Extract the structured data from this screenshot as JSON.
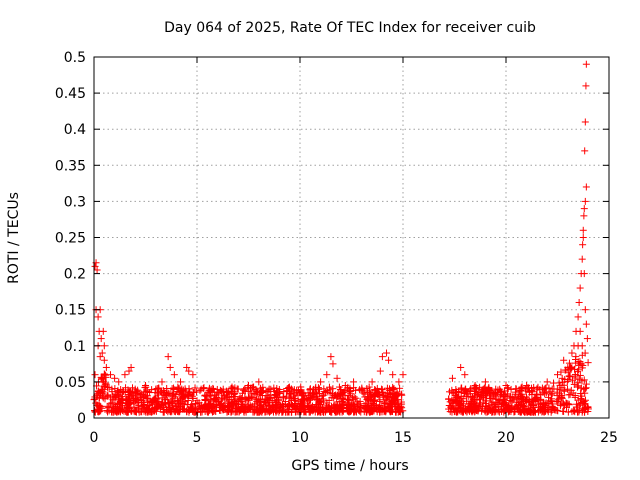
{
  "chart_data": {
    "type": "scatter",
    "title": "Day 064 of 2025, Rate Of TEC Index for receiver cuib",
    "xlabel": "GPS time / hours",
    "ylabel": "ROTI / TECUs",
    "xlim": [
      0,
      25
    ],
    "ylim": [
      0,
      0.5
    ],
    "xticks": [
      "0",
      "5",
      "10",
      "15",
      "20",
      "25"
    ],
    "yticks": [
      "0",
      "0.05",
      "0.1",
      "0.15",
      "0.2",
      "0.25",
      "0.3",
      "0.35",
      "0.4",
      "0.45",
      "0.5"
    ],
    "grid": true,
    "marker": "+",
    "series": [
      {
        "color": "#ff0000",
        "note_gap": [
          15.0,
          17.2
        ],
        "points": [
          [
            0.05,
            0.21
          ],
          [
            0.1,
            0.215
          ],
          [
            0.15,
            0.205
          ],
          [
            0.1,
            0.15
          ],
          [
            0.3,
            0.15
          ],
          [
            0.2,
            0.14
          ],
          [
            0.25,
            0.12
          ],
          [
            0.35,
            0.11
          ],
          [
            0.2,
            0.1
          ],
          [
            0.4,
            0.09
          ],
          [
            0.5,
            0.08
          ],
          [
            0.3,
            0.085
          ],
          [
            0.6,
            0.07
          ],
          [
            0.05,
            0.06
          ],
          [
            0.5,
            0.1
          ],
          [
            0.45,
            0.12
          ],
          [
            0.8,
            0.06
          ],
          [
            1.0,
            0.055
          ],
          [
            1.2,
            0.05
          ],
          [
            1.5,
            0.06
          ],
          [
            1.7,
            0.065
          ],
          [
            1.8,
            0.07
          ],
          [
            2.0,
            0.04
          ],
          [
            2.5,
            0.045
          ],
          [
            3.0,
            0.04
          ],
          [
            3.3,
            0.05
          ],
          [
            3.6,
            0.085
          ],
          [
            3.7,
            0.07
          ],
          [
            3.9,
            0.06
          ],
          [
            4.2,
            0.05
          ],
          [
            4.5,
            0.07
          ],
          [
            4.6,
            0.065
          ],
          [
            4.8,
            0.06
          ],
          [
            5.2,
            0.04
          ],
          [
            5.8,
            0.04
          ],
          [
            6.5,
            0.035
          ],
          [
            7.0,
            0.04
          ],
          [
            7.5,
            0.045
          ],
          [
            8.0,
            0.05
          ],
          [
            8.5,
            0.04
          ],
          [
            9.0,
            0.035
          ],
          [
            9.5,
            0.04
          ],
          [
            10.0,
            0.035
          ],
          [
            10.5,
            0.04
          ],
          [
            11.0,
            0.05
          ],
          [
            11.3,
            0.06
          ],
          [
            11.5,
            0.085
          ],
          [
            11.6,
            0.075
          ],
          [
            11.8,
            0.055
          ],
          [
            12.2,
            0.045
          ],
          [
            12.6,
            0.05
          ],
          [
            13.0,
            0.04
          ],
          [
            13.5,
            0.05
          ],
          [
            13.9,
            0.065
          ],
          [
            14.0,
            0.085
          ],
          [
            14.2,
            0.09
          ],
          [
            14.3,
            0.08
          ],
          [
            14.5,
            0.06
          ],
          [
            14.8,
            0.05
          ],
          [
            15.0,
            0.06
          ],
          [
            17.4,
            0.055
          ],
          [
            17.8,
            0.07
          ],
          [
            18.0,
            0.06
          ],
          [
            18.5,
            0.045
          ],
          [
            19.0,
            0.05
          ],
          [
            19.5,
            0.04
          ],
          [
            20.0,
            0.045
          ],
          [
            20.5,
            0.04
          ],
          [
            21.0,
            0.045
          ],
          [
            21.5,
            0.04
          ],
          [
            22.0,
            0.05
          ],
          [
            22.5,
            0.06
          ],
          [
            22.8,
            0.08
          ],
          [
            23.0,
            0.07
          ],
          [
            23.2,
            0.09
          ],
          [
            23.3,
            0.1
          ],
          [
            23.4,
            0.12
          ],
          [
            23.5,
            0.14
          ],
          [
            23.55,
            0.16
          ],
          [
            23.6,
            0.18
          ],
          [
            23.65,
            0.2
          ],
          [
            23.7,
            0.22
          ],
          [
            23.72,
            0.24
          ],
          [
            23.75,
            0.26
          ],
          [
            23.78,
            0.28
          ],
          [
            23.8,
            0.29
          ],
          [
            23.85,
            0.3
          ],
          [
            23.9,
            0.32
          ],
          [
            23.82,
            0.37
          ],
          [
            23.85,
            0.41
          ],
          [
            23.88,
            0.46
          ],
          [
            23.9,
            0.49
          ],
          [
            23.75,
            0.25
          ],
          [
            23.8,
            0.2
          ],
          [
            23.85,
            0.15
          ],
          [
            23.9,
            0.13
          ],
          [
            23.95,
            0.11
          ],
          [
            23.7,
            0.1
          ],
          [
            23.6,
            0.12
          ],
          [
            23.5,
            0.1
          ]
        ]
      }
    ]
  }
}
